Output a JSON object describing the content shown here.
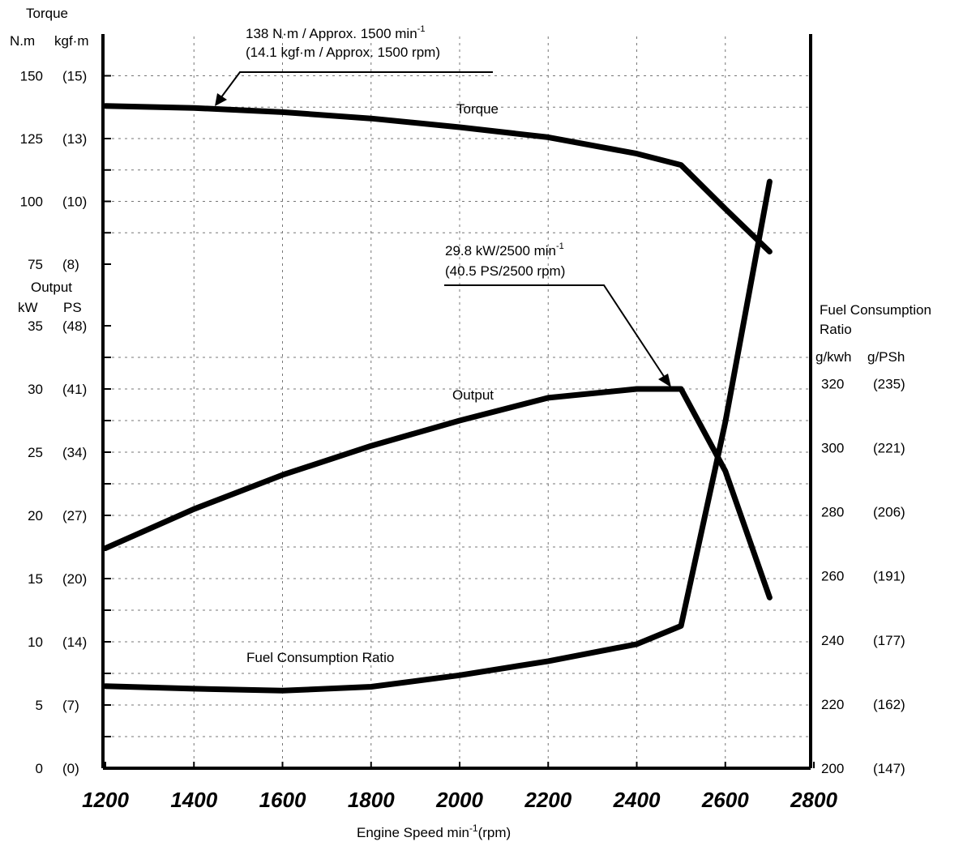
{
  "chart_data": {
    "type": "line",
    "x": [
      1200,
      1400,
      1600,
      1800,
      2000,
      2200,
      2400,
      2500,
      2600,
      2700
    ],
    "xlabel": "Engine Speed   min",
    "xlabel_sup": "-1",
    "xlabel_tail": "(rpm)",
    "xticks": [
      "1200",
      "1400",
      "1600",
      "1800",
      "2000",
      "2200",
      "2400",
      "2600",
      "2800"
    ],
    "xlim": [
      1200,
      2800
    ],
    "left_axis": {
      "top_title": "Torque",
      "torque_units": {
        "nm": "N.m",
        "kgf": "kgf·m"
      },
      "torque_ticks": [
        {
          "nm": "150",
          "kgf": "(15)"
        },
        {
          "nm": "125",
          "kgf": "(13)"
        },
        {
          "nm": "100",
          "kgf": "(10)"
        },
        {
          "nm": "75",
          "kgf": "(8)"
        }
      ],
      "output_title": "Output",
      "output_units": {
        "kw": "kW",
        "ps": "PS"
      },
      "output_ticks": [
        {
          "kw": "35",
          "ps": "(48)"
        },
        {
          "kw": "30",
          "ps": "(41)"
        },
        {
          "kw": "25",
          "ps": "(34)"
        },
        {
          "kw": "20",
          "ps": "(27)"
        },
        {
          "kw": "15",
          "ps": "(20)"
        },
        {
          "kw": "10",
          "ps": "(14)"
        },
        {
          "kw": "5",
          "ps": "(7)"
        },
        {
          "kw": "0",
          "ps": "(0)"
        }
      ],
      "output_lim": [
        0,
        35
      ],
      "torque_lim": [
        75,
        150
      ]
    },
    "right_axis": {
      "title_line1": "Fuel Consumption",
      "title_line2": "Ratio",
      "units": {
        "gkwh": "g/kwh",
        "gpsh": "g/PSh"
      },
      "ticks": [
        {
          "gkwh": "320",
          "gpsh": "(235)"
        },
        {
          "gkwh": "300",
          "gpsh": "(221)"
        },
        {
          "gkwh": "280",
          "gpsh": "(206)"
        },
        {
          "gkwh": "260",
          "gpsh": "(191)"
        },
        {
          "gkwh": "240",
          "gpsh": "(177)"
        },
        {
          "gkwh": "220",
          "gpsh": "(162)"
        },
        {
          "gkwh": "200",
          "gpsh": "(147)"
        }
      ],
      "lim": [
        200,
        320
      ]
    },
    "series": [
      {
        "name": "Torque",
        "axis": "torque",
        "points": [
          [
            1200,
            138
          ],
          [
            1400,
            137.2
          ],
          [
            1600,
            135.5
          ],
          [
            1800,
            133
          ],
          [
            2000,
            129.5
          ],
          [
            2200,
            125.5
          ],
          [
            2400,
            119
          ],
          [
            2500,
            114.5
          ],
          [
            2600,
            97
          ],
          [
            2700,
            80
          ]
        ]
      },
      {
        "name": "Output",
        "axis": "output",
        "points": [
          [
            1200,
            17.4
          ],
          [
            1400,
            20.5
          ],
          [
            1600,
            23.2
          ],
          [
            1800,
            25.5
          ],
          [
            2000,
            27.5
          ],
          [
            2200,
            29.3
          ],
          [
            2400,
            30
          ],
          [
            2500,
            30
          ],
          [
            2600,
            23.5
          ],
          [
            2700,
            13.5
          ]
        ]
      },
      {
        "name": "Fuel Consumption Ratio",
        "axis": "fuel",
        "points": [
          [
            1200,
            225.6
          ],
          [
            1400,
            224.8
          ],
          [
            1600,
            224.2
          ],
          [
            1800,
            225.4
          ],
          [
            2000,
            229
          ],
          [
            2200,
            233.4
          ],
          [
            2400,
            238.7
          ],
          [
            2500,
            244.4
          ],
          [
            2600,
            308
          ],
          [
            2700,
            383
          ]
        ]
      }
    ],
    "annotations": {
      "torque_peak_line1": "138 N·m / Approx. 1500 min",
      "torque_peak_line1_sup": "-1",
      "torque_peak_line2": "(14.1 kgf·m / Approx. 1500 rpm)",
      "output_peak_line1": "29.8 kW/2500 min",
      "output_peak_line1_sup": "-1",
      "output_peak_line2": "(40.5 PS/2500 rpm)"
    }
  }
}
